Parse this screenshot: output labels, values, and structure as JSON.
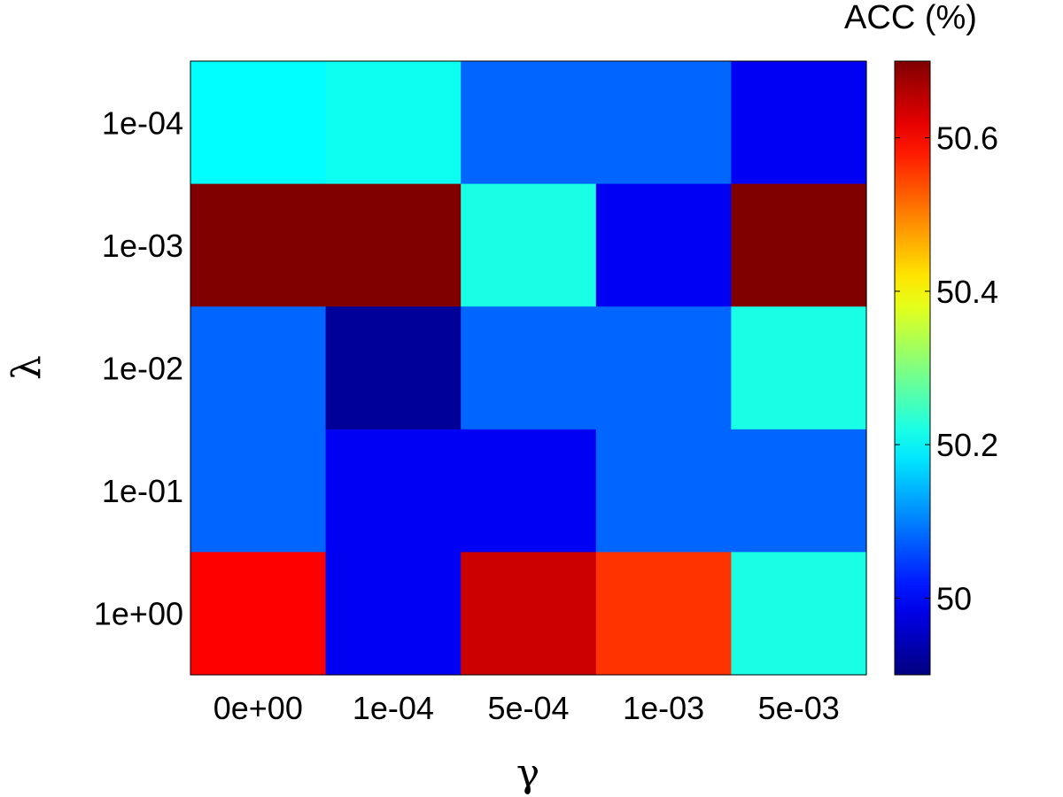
{
  "chart_data": {
    "type": "heatmap",
    "title": "",
    "xlabel": "γ",
    "ylabel": "λ",
    "x_categories": [
      "0e+00",
      "1e-04",
      "5e-04",
      "1e-03",
      "5e-03"
    ],
    "y_categories": [
      "1e-04",
      "1e-03",
      "1e-02",
      "1e-01",
      "1e+00"
    ],
    "values": [
      [
        50.2,
        50.21,
        50.08,
        50.08,
        49.99
      ],
      [
        50.7,
        50.7,
        50.22,
        49.99,
        50.7
      ],
      [
        50.08,
        49.92,
        50.08,
        50.08,
        50.22
      ],
      [
        50.08,
        49.99,
        49.99,
        50.08,
        50.08
      ],
      [
        50.6,
        49.99,
        50.64,
        50.56,
        50.22
      ]
    ],
    "colormap": "jet",
    "colorbar": {
      "label": "ACC (%)",
      "range": [
        49.9,
        50.7
      ],
      "ticks": [
        50,
        50.2,
        50.4,
        50.6
      ],
      "tick_labels": [
        "50",
        "50.2",
        "50.4",
        "50.6"
      ]
    }
  }
}
